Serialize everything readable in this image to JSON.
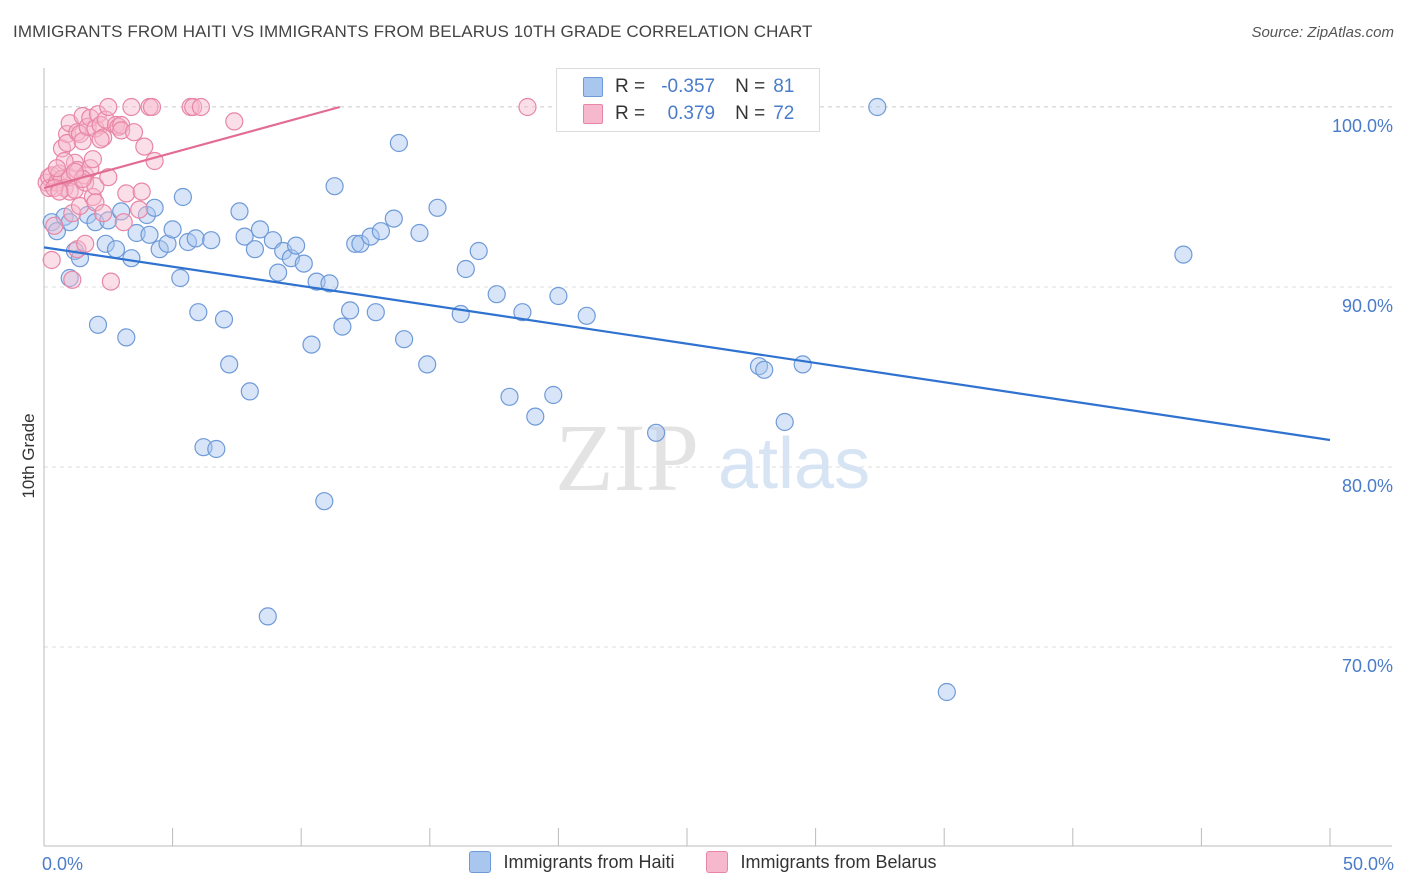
{
  "header": {
    "title": "IMMIGRANTS FROM HAITI VS IMMIGRANTS FROM BELARUS 10TH GRADE CORRELATION CHART",
    "source": "Source: ZipAtlas.com"
  },
  "watermark": {
    "zip": "ZIP",
    "atlas": "atlas"
  },
  "legend": {
    "rows": [
      {
        "r_label": "R =",
        "r_value": "-0.357",
        "n_label": "N =",
        "n_value": "81",
        "color": "#a9c6ef",
        "border": "#6f9ad8"
      },
      {
        "r_label": "R =",
        "r_value": "0.379",
        "n_label": "N =",
        "n_value": "72",
        "color": "#f6b8cc",
        "border": "#e886a6"
      }
    ]
  },
  "bottom_legend": [
    {
      "label": "Immigrants from Haiti",
      "color": "#a9c6ef",
      "border": "#6f9ad8"
    },
    {
      "label": "Immigrants from Belarus",
      "color": "#f6b8cc",
      "border": "#e886a6"
    }
  ],
  "chart_data": {
    "type": "scatter",
    "title": "IMMIGRANTS FROM HAITI VS IMMIGRANTS FROM BELARUS 10TH GRADE CORRELATION CHART",
    "xlabel": "",
    "ylabel": "10th Grade",
    "xlim": [
      0,
      50
    ],
    "ylim": [
      59,
      101.5
    ],
    "x_tick_labels": [
      {
        "value": 0,
        "label": "0.0%"
      },
      {
        "value": 50,
        "label": "50.0%"
      }
    ],
    "y_tick_labels": [
      {
        "value": 100,
        "label": "100.0%"
      },
      {
        "value": 90,
        "label": "90.0%"
      },
      {
        "value": 80,
        "label": "80.0%"
      },
      {
        "value": 70,
        "label": "70.0%"
      }
    ],
    "grid": true,
    "series": [
      {
        "name": "Immigrants from Haiti",
        "color": "#6f9ad8",
        "fill": "#a9c6ef",
        "trend_color": "#2f72d0",
        "trend": {
          "x": [
            0,
            50
          ],
          "y": [
            92.2,
            81.5
          ]
        },
        "points": [
          [
            0.3,
            93.6
          ],
          [
            0.5,
            93.1
          ],
          [
            0.8,
            93.9
          ],
          [
            1.0,
            93.6
          ],
          [
            1.2,
            92.0
          ],
          [
            1.4,
            91.6
          ],
          [
            1.0,
            90.5
          ],
          [
            1.7,
            94.0
          ],
          [
            2.0,
            93.6
          ],
          [
            2.1,
            87.9
          ],
          [
            2.5,
            93.7
          ],
          [
            2.4,
            92.4
          ],
          [
            2.8,
            92.1
          ],
          [
            3.0,
            94.2
          ],
          [
            3.2,
            87.2
          ],
          [
            3.4,
            91.6
          ],
          [
            3.6,
            93.0
          ],
          [
            4.0,
            94.0
          ],
          [
            4.1,
            92.9
          ],
          [
            4.3,
            94.4
          ],
          [
            4.5,
            92.1
          ],
          [
            4.8,
            92.4
          ],
          [
            5.0,
            93.2
          ],
          [
            5.3,
            90.5
          ],
          [
            5.4,
            95.0
          ],
          [
            5.6,
            92.5
          ],
          [
            5.9,
            92.7
          ],
          [
            6.0,
            88.6
          ],
          [
            6.2,
            81.1
          ],
          [
            6.5,
            92.6
          ],
          [
            6.7,
            81.0
          ],
          [
            7.0,
            88.2
          ],
          [
            7.2,
            85.7
          ],
          [
            7.6,
            94.2
          ],
          [
            7.8,
            92.8
          ],
          [
            8.0,
            84.2
          ],
          [
            8.2,
            92.1
          ],
          [
            8.4,
            93.2
          ],
          [
            8.7,
            71.7
          ],
          [
            8.9,
            92.6
          ],
          [
            9.1,
            90.8
          ],
          [
            9.3,
            92.0
          ],
          [
            9.6,
            91.6
          ],
          [
            9.8,
            92.3
          ],
          [
            10.1,
            91.3
          ],
          [
            10.4,
            86.8
          ],
          [
            10.6,
            90.3
          ],
          [
            10.9,
            78.1
          ],
          [
            11.1,
            90.2
          ],
          [
            11.3,
            95.6
          ],
          [
            11.6,
            87.8
          ],
          [
            11.9,
            88.7
          ],
          [
            12.1,
            92.4
          ],
          [
            12.3,
            92.4
          ],
          [
            12.7,
            92.8
          ],
          [
            12.9,
            88.6
          ],
          [
            13.1,
            93.1
          ],
          [
            13.6,
            93.8
          ],
          [
            13.8,
            98.0
          ],
          [
            14.0,
            87.1
          ],
          [
            14.6,
            93.0
          ],
          [
            14.9,
            85.7
          ],
          [
            15.3,
            94.4
          ],
          [
            16.2,
            88.5
          ],
          [
            16.4,
            91.0
          ],
          [
            16.9,
            92.0
          ],
          [
            17.6,
            89.6
          ],
          [
            18.1,
            83.9
          ],
          [
            18.6,
            88.6
          ],
          [
            19.1,
            82.8
          ],
          [
            19.8,
            84.0
          ],
          [
            20.0,
            89.5
          ],
          [
            21.1,
            88.4
          ],
          [
            23.8,
            81.9
          ],
          [
            27.8,
            85.6
          ],
          [
            28.0,
            85.4
          ],
          [
            28.8,
            82.5
          ],
          [
            29.5,
            85.7
          ],
          [
            32.4,
            100.0
          ],
          [
            35.1,
            67.5
          ],
          [
            44.3,
            91.8
          ]
        ]
      },
      {
        "name": "Immigrants from Belarus",
        "color": "#e886a6",
        "fill": "#f6b8cc",
        "trend_color": "#e36c92",
        "trend": {
          "x": [
            0,
            11.5
          ],
          "y": [
            95.5,
            100.0
          ]
        },
        "points": [
          [
            0.1,
            95.8
          ],
          [
            0.2,
            96.1
          ],
          [
            0.2,
            95.5
          ],
          [
            0.3,
            96.2
          ],
          [
            0.4,
            93.4
          ],
          [
            0.3,
            91.5
          ],
          [
            0.5,
            95.8
          ],
          [
            0.6,
            96.3
          ],
          [
            0.7,
            97.7
          ],
          [
            0.7,
            96.0
          ],
          [
            0.8,
            95.5
          ],
          [
            0.9,
            98.5
          ],
          [
            0.9,
            98.0
          ],
          [
            1.0,
            96.1
          ],
          [
            1.0,
            99.1
          ],
          [
            1.0,
            95.3
          ],
          [
            1.1,
            94.1
          ],
          [
            1.2,
            96.9
          ],
          [
            1.2,
            95.4
          ],
          [
            1.3,
            92.1
          ],
          [
            1.3,
            98.6
          ],
          [
            1.3,
            96.5
          ],
          [
            1.4,
            94.5
          ],
          [
            1.4,
            98.5
          ],
          [
            1.5,
            99.5
          ],
          [
            1.5,
            98.1
          ],
          [
            1.6,
            92.4
          ],
          [
            1.6,
            96.2
          ],
          [
            1.6,
            95.8
          ],
          [
            1.7,
            98.9
          ],
          [
            1.8,
            99.4
          ],
          [
            1.8,
            96.6
          ],
          [
            1.9,
            95.0
          ],
          [
            1.9,
            97.1
          ],
          [
            2.0,
            98.8
          ],
          [
            2.0,
            95.6
          ],
          [
            2.0,
            94.7
          ],
          [
            2.1,
            99.6
          ],
          [
            2.2,
            99.0
          ],
          [
            2.3,
            98.3
          ],
          [
            2.3,
            94.1
          ],
          [
            2.4,
            99.3
          ],
          [
            2.5,
            100.0
          ],
          [
            2.5,
            96.1
          ],
          [
            2.6,
            90.3
          ],
          [
            2.8,
            99.0
          ],
          [
            2.9,
            98.9
          ],
          [
            3.0,
            99.0
          ],
          [
            3.0,
            98.7
          ],
          [
            3.1,
            93.6
          ],
          [
            3.2,
            95.2
          ],
          [
            3.4,
            100.0
          ],
          [
            3.5,
            98.6
          ],
          [
            3.7,
            94.3
          ],
          [
            3.8,
            95.3
          ],
          [
            3.9,
            97.8
          ],
          [
            4.1,
            100.0
          ],
          [
            4.2,
            100.0
          ],
          [
            4.3,
            97.0
          ],
          [
            5.7,
            100.0
          ],
          [
            5.8,
            100.0
          ],
          [
            6.1,
            100.0
          ],
          [
            7.4,
            99.2
          ],
          [
            18.8,
            100.0
          ],
          [
            0.4,
            95.5
          ],
          [
            0.6,
            95.3
          ],
          [
            0.8,
            97.0
          ],
          [
            1.1,
            90.4
          ],
          [
            1.5,
            96.0
          ],
          [
            2.2,
            98.2
          ],
          [
            0.5,
            96.6
          ],
          [
            1.2,
            96.4
          ]
        ]
      }
    ]
  }
}
